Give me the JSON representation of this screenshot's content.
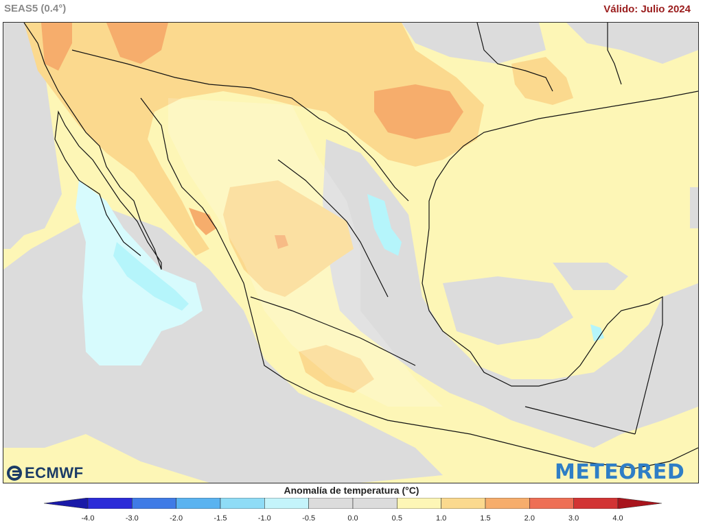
{
  "header": {
    "model_label": "SEAS5 (0.4°)",
    "valid_label": "Válido: Julio 2024"
  },
  "map": {
    "region": "Mexico and surrounding area",
    "variable": "temperature anomaly",
    "ocean_color": "#fdf6b6",
    "anomaly_colors": {
      "-1.5_-1.0": "#b5f5fb",
      "-1.0_-0.5": "#d7fbfd",
      "-0.5_0.5": "#dcdcdc",
      "0.5_1.0": "#fdf6b6",
      "1.0_1.5": "#fbd98e",
      "1.5_2.0": "#f6ad6c"
    }
  },
  "logos": {
    "left": "ECMWF",
    "right": "METEORED"
  },
  "legend": {
    "title": "Anomalía de temperatura (°C)",
    "ticks": [
      "-4.0",
      "-3.0",
      "-2.0",
      "-1.5",
      "-1.0",
      "-0.5",
      "0.0",
      "0.5",
      "1.0",
      "1.5",
      "2.0",
      "3.0",
      "4.0"
    ],
    "colors": [
      "#2b2bd8",
      "#3f7be6",
      "#5ab3f0",
      "#8fdcf6",
      "#c4f4fb",
      "#dcdcdc",
      "#dcdcdc",
      "#fdf6b6",
      "#fbd98e",
      "#f6ad6c",
      "#ee6f55",
      "#d23434"
    ],
    "under_color": "#1a1aa8",
    "over_color": "#a8141c"
  }
}
